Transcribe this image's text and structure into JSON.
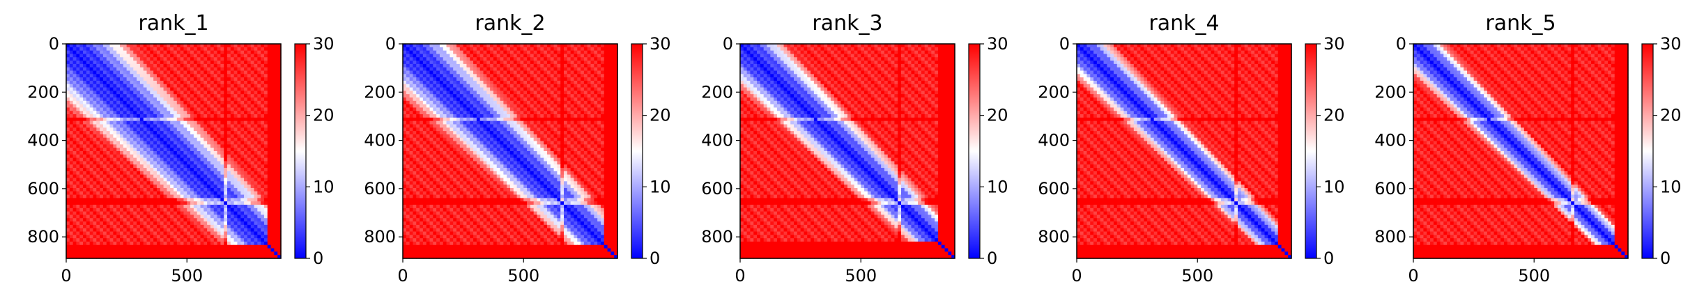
{
  "chart_data": [
    {
      "type": "heatmap",
      "title": "rank_1",
      "x_ticks": [
        "0",
        "500"
      ],
      "y_ticks": [
        "0",
        "200",
        "400",
        "600",
        "800"
      ],
      "xlim": [
        0,
        889
      ],
      "ylim": [
        889,
        0
      ],
      "colorbar": {
        "ticks": [
          "0",
          "10",
          "20",
          "30"
        ],
        "min": 0,
        "max": 30,
        "colormap": "bwr"
      },
      "matrix_summary": {
        "size": 889,
        "diag_value": 0,
        "block_end": 830,
        "band": 0.18
      }
    },
    {
      "type": "heatmap",
      "title": "rank_2",
      "x_ticks": [
        "0",
        "500"
      ],
      "y_ticks": [
        "0",
        "200",
        "400",
        "600",
        "800"
      ],
      "xlim": [
        0,
        889
      ],
      "ylim": [
        889,
        0
      ],
      "colorbar": {
        "ticks": [
          "0",
          "10",
          "20",
          "30"
        ],
        "min": 0,
        "max": 30,
        "colormap": "bwr"
      },
      "matrix_summary": {
        "size": 889,
        "diag_value": 0,
        "block_end": 830,
        "band": 0.15
      }
    },
    {
      "type": "heatmap",
      "title": "rank_3",
      "x_ticks": [
        "0",
        "500"
      ],
      "y_ticks": [
        "0",
        "200",
        "400",
        "600",
        "800"
      ],
      "xlim": [
        0,
        889
      ],
      "ylim": [
        889,
        0
      ],
      "colorbar": {
        "ticks": [
          "0",
          "10",
          "20",
          "30"
        ],
        "min": 0,
        "max": 30,
        "colormap": "bwr"
      },
      "matrix_summary": {
        "size": 889,
        "diag_value": 0,
        "block_end": 820,
        "band": 0.13
      }
    },
    {
      "type": "heatmap",
      "title": "rank_4",
      "x_ticks": [
        "0",
        "500"
      ],
      "y_ticks": [
        "0",
        "200",
        "400",
        "600",
        "800"
      ],
      "xlim": [
        0,
        889
      ],
      "ylim": [
        889,
        0
      ],
      "colorbar": {
        "ticks": [
          "0",
          "10",
          "20",
          "30"
        ],
        "min": 0,
        "max": 30,
        "colormap": "bwr"
      },
      "matrix_summary": {
        "size": 889,
        "diag_value": 0,
        "block_end": 830,
        "band": 0.1
      }
    },
    {
      "type": "heatmap",
      "title": "rank_5",
      "x_ticks": [
        "0",
        "500"
      ],
      "y_ticks": [
        "0",
        "200",
        "400",
        "600",
        "800"
      ],
      "xlim": [
        0,
        889
      ],
      "ylim": [
        889,
        0
      ],
      "colorbar": {
        "ticks": [
          "0",
          "10",
          "20",
          "30"
        ],
        "min": 0,
        "max": 30,
        "colormap": "bwr"
      },
      "matrix_summary": {
        "size": 889,
        "diag_value": 0,
        "block_end": 830,
        "band": 0.09
      }
    }
  ],
  "colors": {
    "low": "#0000ff",
    "mid": "#ffffff",
    "high": "#ff0000"
  }
}
